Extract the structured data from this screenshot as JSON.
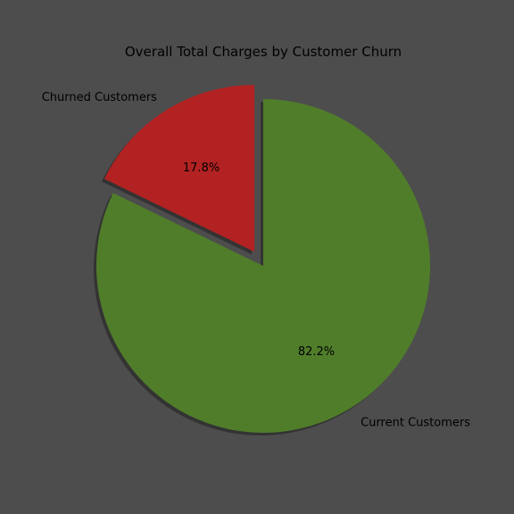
{
  "chart_data": {
    "type": "pie",
    "title": "Overall Total Charges by Customer Churn",
    "slices": [
      {
        "label": "Current Customers",
        "value": 82.2,
        "pct_label": "82.2%",
        "color": "#507d2a",
        "exploded": false
      },
      {
        "label": "Churned Customers",
        "value": 17.8,
        "pct_label": "17.8%",
        "color": "#b22222",
        "exploded": true
      }
    ],
    "shadow": true,
    "background_color": "#4d4d4d",
    "shadow_color": "#333333"
  }
}
